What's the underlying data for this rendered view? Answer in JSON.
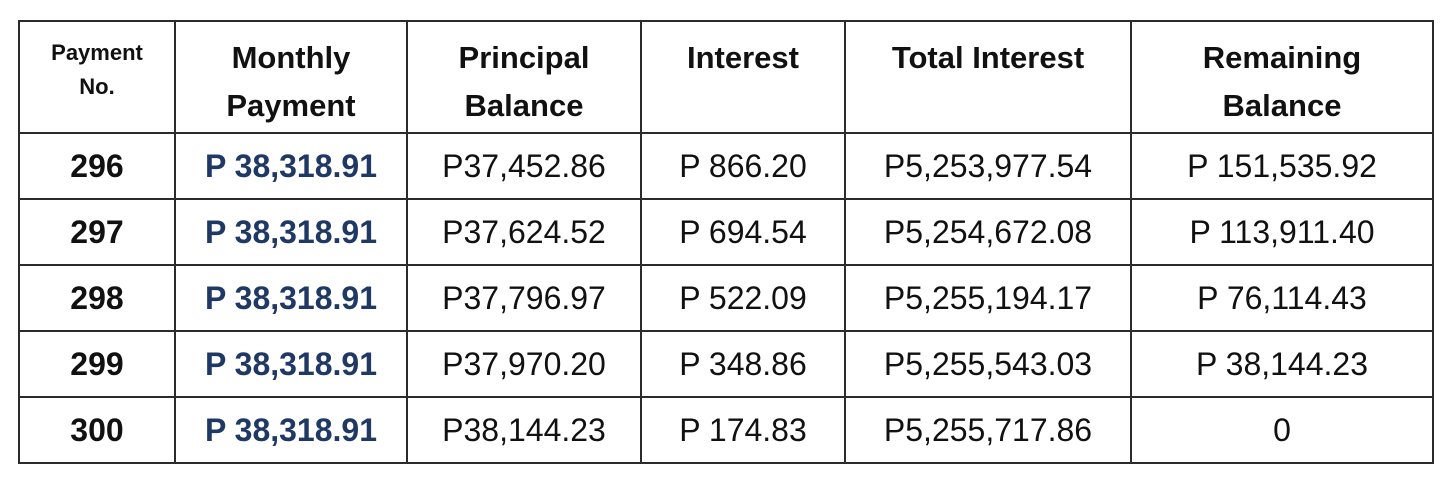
{
  "table": {
    "headers": [
      {
        "lines": [
          "Payment",
          "No."
        ]
      },
      {
        "lines": [
          "Monthly",
          "Payment"
        ]
      },
      {
        "lines": [
          "Principal",
          "Balance"
        ]
      },
      {
        "lines": [
          "Interest",
          ""
        ]
      },
      {
        "lines": [
          "Total Interest",
          ""
        ]
      },
      {
        "lines": [
          "Remaining",
          "Balance"
        ]
      }
    ],
    "rows": [
      {
        "no": "296",
        "monthly": "P 38,318.91",
        "principal": "P37,452.86",
        "interest": "P 866.20",
        "total_interest": "P5,253,977.54",
        "remaining": "P 151,535.92"
      },
      {
        "no": "297",
        "monthly": "P 38,318.91",
        "principal": "P37,624.52",
        "interest": "P 694.54",
        "total_interest": "P5,254,672.08",
        "remaining": "P 113,911.40"
      },
      {
        "no": "298",
        "monthly": "P 38,318.91",
        "principal": "P37,796.97",
        "interest": "P 522.09",
        "total_interest": "P5,255,194.17",
        "remaining": "P 76,114.43"
      },
      {
        "no": "299",
        "monthly": "P 38,318.91",
        "principal": "P37,970.20",
        "interest": "P 348.86",
        "total_interest": "P5,255,543.03",
        "remaining": "P 38,144.23"
      },
      {
        "no": "300",
        "monthly": "P 38,318.91",
        "principal": "P38,144.23",
        "interest": "P 174.83",
        "total_interest": "P5,255,717.86",
        "remaining": "0"
      }
    ]
  },
  "colors": {
    "monthly_payment_text": "#1f3864",
    "border": "#2b2b2b"
  }
}
